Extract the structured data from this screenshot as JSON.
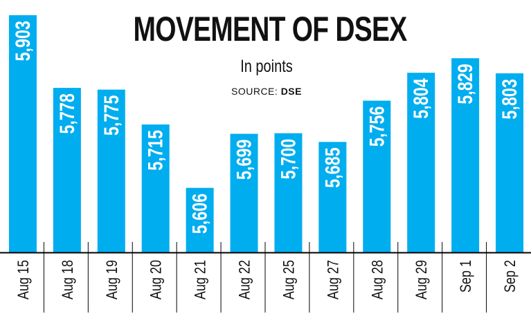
{
  "chart_data": {
    "type": "bar",
    "title": "MOVEMENT OF DSEX",
    "subtitle": "In points",
    "source_label": "SOURCE:",
    "source_value": "DSE",
    "categories": [
      "Aug 15",
      "Aug 18",
      "Aug 19",
      "Aug 20",
      "Aug 21",
      "Aug 22",
      "Aug 25",
      "Aug 27",
      "Aug 28",
      "Aug 29",
      "Sep 1",
      "Sep 2"
    ],
    "values": [
      5903,
      5778,
      5775,
      5715,
      5606,
      5699,
      5700,
      5685,
      5756,
      5804,
      5829,
      5803
    ],
    "value_labels": [
      "5,903",
      "5,778",
      "5,775",
      "5,715",
      "5,606",
      "5,699",
      "5,700",
      "5,685",
      "5,756",
      "5,804",
      "5,829",
      "5,803"
    ],
    "ylim": [
      5495,
      5903
    ],
    "grid": false,
    "bar_color": "#00adef",
    "label_color": "#ffffff",
    "axis_color": "#000000"
  }
}
